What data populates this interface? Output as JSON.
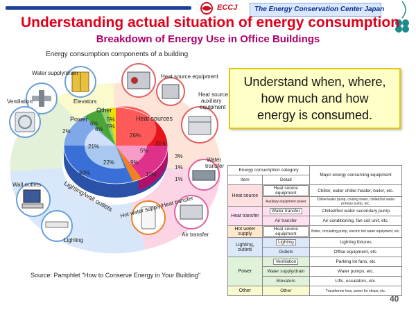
{
  "header": {
    "logo_text": "ECCJ",
    "org_name": "The Energy Conservation Center Japan",
    "title": "Understanding actual situation of energy consumption",
    "subtitle": "Breakdown of Energy Use in Office Buildings",
    "caption": "Energy consumption components of a building"
  },
  "labels": {
    "water_supply": "Water supply/drain",
    "elevators": "Elevators",
    "ventilation": "Ventilation",
    "heat_source_equipment": "Heat source equipment",
    "heat_source_aux_1": "Heat source",
    "heat_source_aux_2": "auxiliary",
    "heat_source_aux_3": "equipment",
    "water_transfer_1": "Water",
    "water_transfer_2": "transfer",
    "wall_outlets": "Wall outlets",
    "lighting": "Lighting",
    "air_transfer": "Air transfer"
  },
  "chart_data": {
    "type": "pie",
    "title": "",
    "groups": [
      {
        "name": "Heat sources",
        "values": [
          "26%",
          "31%",
          "5%"
        ]
      },
      {
        "name": "Heat transfer",
        "values": [
          "3%",
          "9%",
          "1%"
        ]
      },
      {
        "name": "Hot water supply/Heat transfer",
        "values": [
          "1%",
          "11%"
        ]
      },
      {
        "name": "Lighting/wall outlets",
        "values": [
          "21%",
          "22%",
          "43%"
        ]
      },
      {
        "name": "Power",
        "values": [
          "6%",
          "6%",
          "2%"
        ]
      },
      {
        "name": "Other",
        "values": [
          "5%",
          "5%"
        ]
      }
    ],
    "outer_labels": [
      "Heat sources",
      "Power",
      "Other",
      "Lighting/wall outlets",
      "Hot water supply/Heat transfer"
    ],
    "value_labels": {
      "heat_inner": "26%",
      "heat_outer": "31%",
      "heat_aux": "5%",
      "heat_transfer_a": "3%",
      "heat_transfer_b": "9%",
      "heat_transfer_c": "1%",
      "hot_water": "1%",
      "air_transfer": "11%",
      "lighting_inner": "21%",
      "outlets_inner": "22%",
      "lighting_outer": "43%",
      "power_a": "6%",
      "power_b": "6%",
      "power_c": "2%",
      "other_a": "5%",
      "other_b": "5%"
    }
  },
  "callout": {
    "line1": "Understand when, where,",
    "line2": "how much and how",
    "line3": "energy is consumed."
  },
  "table": {
    "header_category": "Energy consumption category",
    "header_item": "Item",
    "header_detail": "Detail",
    "header_major": "Major energy consuming equipment",
    "rows": [
      {
        "item": "Heat source",
        "detail": "Heat source equipment",
        "major": "Chiller, water chiller-heater, boiler, etc."
      },
      {
        "item": "",
        "detail": "Auxiliary equipment power",
        "major": "Chiller/water pump, cooling tower, chilled/hot water primary pump, etc."
      },
      {
        "item": "Heat transfer",
        "detail": "Water transfer",
        "major": "Chilled/hot water secondary pump"
      },
      {
        "item": "",
        "detail": "Air transfer",
        "major": "Air conditioning, fan coil unit, etc."
      },
      {
        "item": "Hot water supply",
        "detail": "Heat source equipment",
        "major": "Boiler, circulating pump, electric hot water equipment, etc."
      },
      {
        "item": "Lighting, outlets",
        "detail": "Lighting",
        "major": "Lighting fixtures"
      },
      {
        "item": "",
        "detail": "Outlets",
        "major": "Office equipment, etc."
      },
      {
        "item": "Power",
        "detail": "Ventilation",
        "major": "Parking lot fans, etc"
      },
      {
        "item": "",
        "detail": "Water supply/drain",
        "major": "Water pumps, etc."
      },
      {
        "item": "",
        "detail": "Elevators",
        "major": "Lifts, escalators, etc."
      },
      {
        "item": "Other",
        "detail": "Other",
        "major": "Transformer loss, power for shops, etc."
      }
    ]
  },
  "source": "Source:  Pamphlet \"How to Conserve Energy in Your Building\"",
  "page_number": "40",
  "colors": {
    "title_red": "#e0001b",
    "subtitle_magenta": "#b0006a",
    "heat_red": "#e8141c",
    "heat_pink": "#ff9b9b",
    "transfer_magenta": "#e0318a",
    "hotwater_orange": "#f08020",
    "lighting_blue": "#3a6fd8",
    "lighting_light": "#a9c8f0",
    "power_green": "#4aa63a",
    "other_yellow": "#e8e000",
    "callout_bg": "#ffffc8"
  },
  "icons": [
    "logo-icon",
    "clover-icon",
    "water-supply-icon",
    "elevator-icon",
    "ventilation-icon",
    "heat-source-icon",
    "cooling-tower-icon",
    "pump-icon",
    "computer-icon",
    "lighting-icon",
    "air-transfer-icon",
    "water-heater-icon"
  ]
}
